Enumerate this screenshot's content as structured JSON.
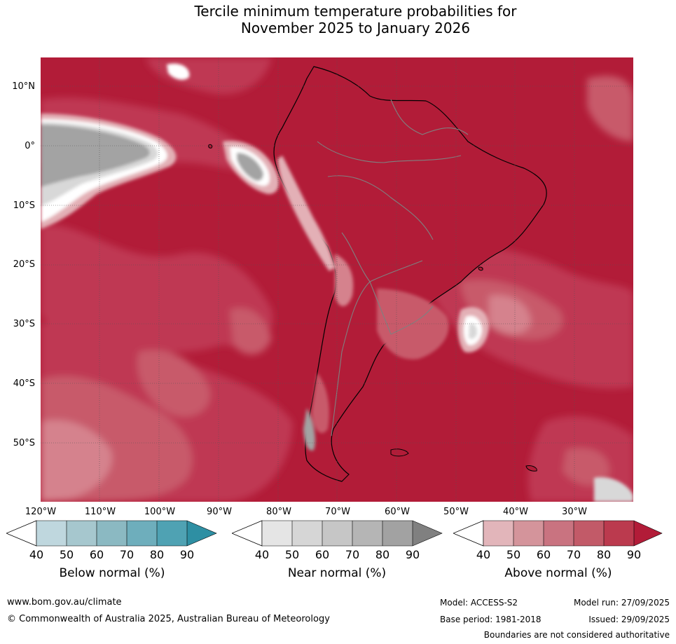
{
  "title": {
    "line1": "Tercile minimum temperature probabilities for",
    "line2": "November 2025 to January 2026"
  },
  "map": {
    "region": "South America",
    "lat_labels": [
      "10°N",
      "0°",
      "10°S",
      "20°S",
      "30°S",
      "40°S",
      "50°S"
    ],
    "lon_labels": [
      "120°W",
      "110°W",
      "100°W",
      "90°W",
      "80°W",
      "70°W",
      "60°W",
      "50°W",
      "40°W",
      "30°W"
    ],
    "colors": {
      "above_90": "#b21c38",
      "above_80": "#bf3852",
      "above_70": "#c85a6b",
      "above_60": "#d5828d",
      "above_50": "#e3b0b6",
      "near_90": "#a3a3a3",
      "near_50": "#d8d8d8",
      "white": "#ffffff",
      "land_line": "#000000",
      "border_line": "#808080"
    }
  },
  "colorbars": [
    {
      "label": "Below normal (%)",
      "ticks": [
        "40",
        "50",
        "60",
        "70",
        "80",
        "90"
      ],
      "colors": [
        "#bfd7de",
        "#a6c7ce",
        "#8bb9c2",
        "#6eaebc",
        "#4fa2b3",
        "#2e8fa3"
      ]
    },
    {
      "label": "Near normal (%)",
      "ticks": [
        "40",
        "50",
        "60",
        "70",
        "80",
        "90"
      ],
      "colors": [
        "#e5e5e5",
        "#d6d6d6",
        "#c6c6c6",
        "#b5b5b5",
        "#a2a2a2",
        "#808080"
      ]
    },
    {
      "label": "Above normal (%)",
      "ticks": [
        "40",
        "50",
        "60",
        "70",
        "80",
        "90"
      ],
      "colors": [
        "#e2b5ba",
        "#d4949b",
        "#c97380",
        "#c25a68",
        "#bb3a4e",
        "#b21c38"
      ]
    }
  ],
  "footer": {
    "website": "www.bom.gov.au/climate",
    "copyright": "© Commonwealth of Australia 2025, Australian Bureau of Meteorology",
    "model": "Model: ACCESS-S2",
    "base_period": "Base period: 1981-2018",
    "model_run": "Model run: 27/09/2025",
    "issued": "Issued: 29/09/2025",
    "disclaimer": "Boundaries are not considered authoritative"
  }
}
